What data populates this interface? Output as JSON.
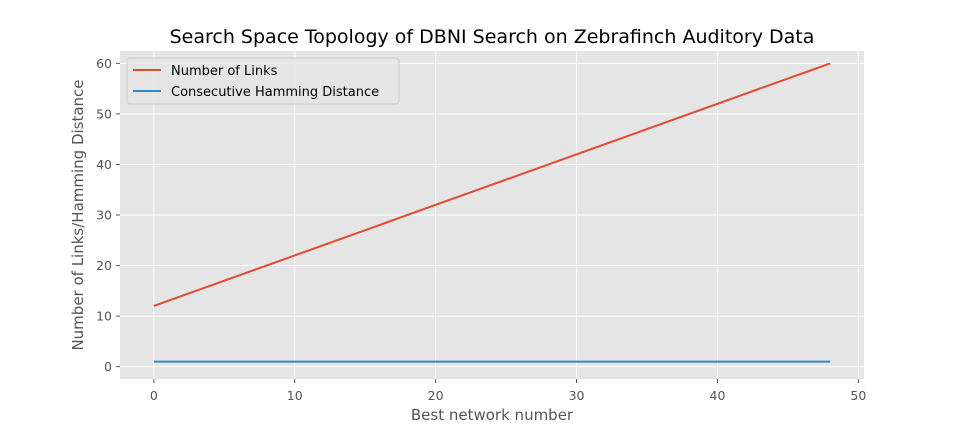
{
  "chart_data": {
    "type": "line",
    "title": "Search Space Topology of DBNI Search on Zebrafinch Auditory Data",
    "xlabel": "Best network number",
    "ylabel": "Number of Links/Hamming Distance",
    "xlim": [
      -2.4,
      50.4
    ],
    "ylim": [
      -2.45,
      62.45
    ],
    "xticks": [
      0,
      10,
      20,
      30,
      40,
      50
    ],
    "yticks": [
      0,
      10,
      20,
      30,
      40,
      50,
      60
    ],
    "grid": true,
    "legend_position": "upper-left",
    "series": [
      {
        "name": "Number of Links",
        "color": "#e24a33",
        "x": [
          0,
          48
        ],
        "y": [
          12,
          60
        ]
      },
      {
        "name": "Consecutive Hamming Distance",
        "color": "#348abd",
        "x": [
          0,
          48
        ],
        "y": [
          1,
          1
        ]
      }
    ],
    "colors": {
      "plot_background": "#e5e5e5",
      "grid": "#ffffff",
      "text": "#555555"
    }
  }
}
